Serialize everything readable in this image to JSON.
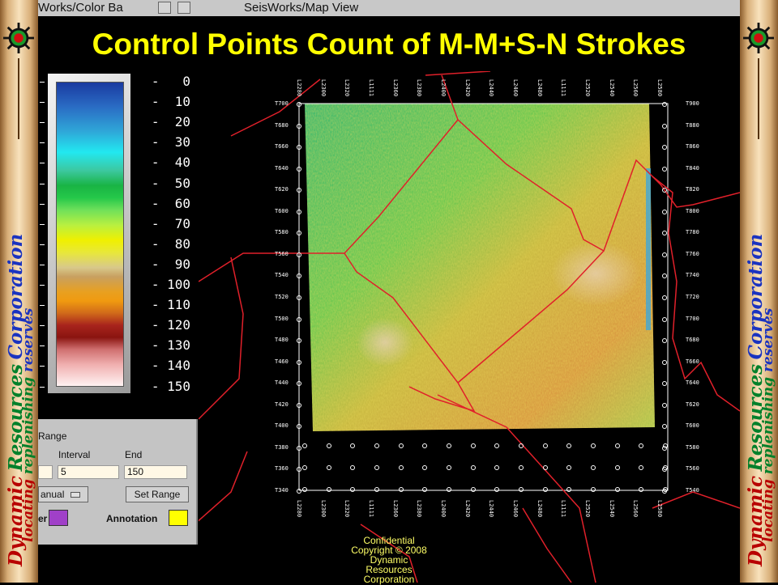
{
  "slide": {
    "title": "Control Points Count of M-M+S-N Strokes"
  },
  "windows": {
    "color_bar_title": "Works/Color Ba",
    "map_view_title": "SeisWorks/Map View"
  },
  "banner": {
    "company": [
      "Dynamic",
      "Resources",
      "Corporation"
    ],
    "tagline": [
      "locating",
      "replenishing",
      "reserves"
    ]
  },
  "color_bar": {
    "ticks": [
      "0",
      "10",
      "20",
      "30",
      "40",
      "50",
      "60",
      "70",
      "80",
      "90",
      "100",
      "110",
      "120",
      "130",
      "140",
      "150"
    ]
  },
  "range_panel": {
    "heading": "Range",
    "interval_label": "Interval",
    "end_label": "End",
    "interval_value": "5",
    "end_value": "150",
    "mode_value": "anual",
    "set_range_label": "Set Range",
    "border_label": "er",
    "annotation_label": "Annotation",
    "border_color": "#a040c8",
    "annotation_color": "#ffff00"
  },
  "map": {
    "top_labels": [
      "L2280",
      "L2300",
      "L2320",
      "L1111",
      "L2360",
      "L2380",
      "L2400",
      "L2420",
      "L2440",
      "L2460",
      "L2480",
      "L1111",
      "L2520",
      "L2540",
      "L2560",
      "L2580"
    ],
    "bottom_labels": [
      "L2280",
      "L2300",
      "L2320",
      "L1111",
      "L2360",
      "L2380",
      "L2400",
      "L2420",
      "L2440",
      "L2460",
      "L2480",
      "L1111",
      "L2520",
      "L2540",
      "L2560",
      "L2580"
    ],
    "left_labels": [
      "T700",
      "T680",
      "T660",
      "T640",
      "T620",
      "T600",
      "T580",
      "T560",
      "T540",
      "T520",
      "T500",
      "T480",
      "T460",
      "T440",
      "T420",
      "T400",
      "T380",
      "T360",
      "T340"
    ],
    "right_labels": [
      "T900",
      "T880",
      "T860",
      "T840",
      "T820",
      "T800",
      "T780",
      "T760",
      "T740",
      "T720",
      "T700",
      "T680",
      "T660",
      "T640",
      "T620",
      "T600",
      "T580",
      "T560",
      "T540"
    ]
  },
  "footer": {
    "line1": "Confidential",
    "line2": "Copyright © 2008",
    "line3": "Dynamic Resources Corporation"
  }
}
